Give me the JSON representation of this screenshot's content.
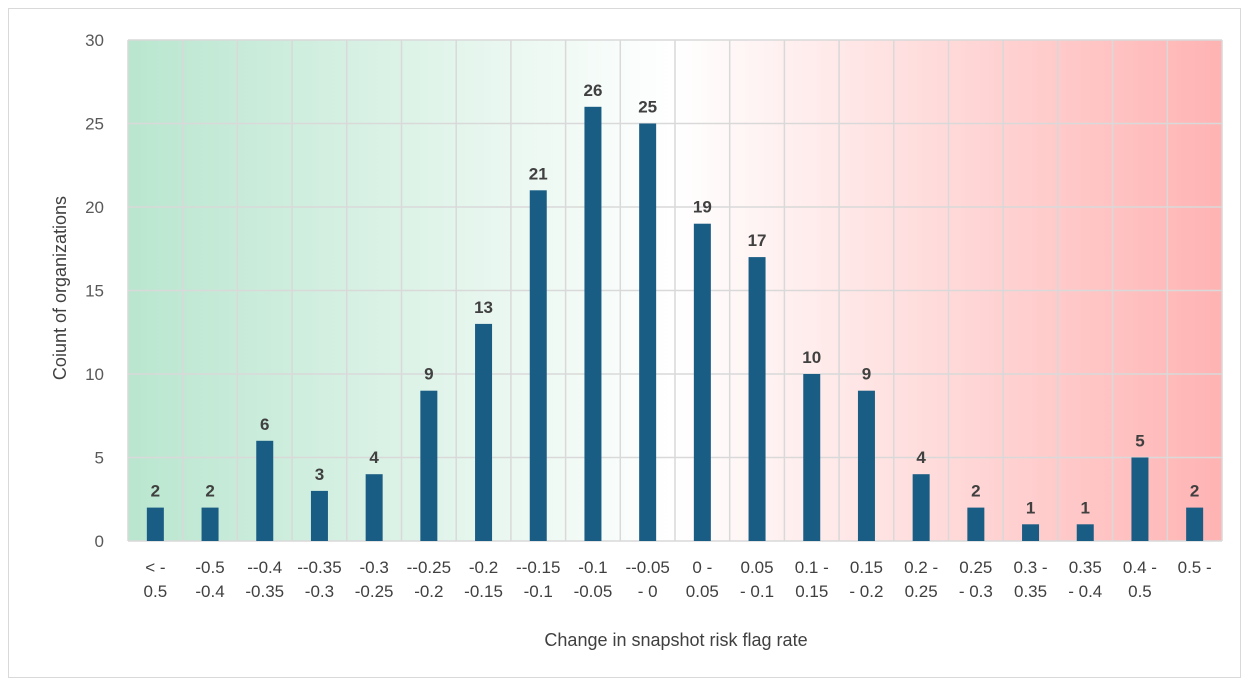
{
  "chart_data": {
    "type": "bar",
    "title": "",
    "xlabel": "Change in snapshot risk flag rate",
    "ylabel": "Coiunt of organizations",
    "ylim": [
      0,
      30
    ],
    "yticks": [
      0,
      5,
      10,
      15,
      20,
      25,
      30
    ],
    "grid": true,
    "legend": "none",
    "categories": [
      [
        "< -",
        "0.5"
      ],
      [
        "-0.5",
        "-0.4"
      ],
      [
        "--0.4",
        "-0.35"
      ],
      [
        "--0.35",
        "-0.3"
      ],
      [
        "-0.3",
        "-0.25"
      ],
      [
        "--0.25",
        "-0.2"
      ],
      [
        "-0.2",
        "-0.15"
      ],
      [
        "--0.15",
        "-0.1"
      ],
      [
        "-0.1",
        "-0.05"
      ],
      [
        "--0.05",
        "- 0"
      ],
      [
        "0 -",
        "0.05"
      ],
      [
        "0.05",
        "- 0.1"
      ],
      [
        "0.1 -",
        "0.15"
      ],
      [
        "0.15",
        "- 0.2"
      ],
      [
        "0.2 -",
        "0.25"
      ],
      [
        "0.25",
        "- 0.3"
      ],
      [
        "0.3 -",
        "0.35"
      ],
      [
        "0.35",
        "- 0.4"
      ],
      [
        "0.4 -",
        "0.5"
      ],
      [
        "0.5 -",
        ""
      ]
    ],
    "values": [
      2,
      2,
      6,
      3,
      4,
      9,
      13,
      21,
      26,
      25,
      19,
      17,
      10,
      9,
      4,
      2,
      1,
      1,
      5,
      2
    ],
    "colors": {
      "bar": "#1a5d84",
      "background_left": "#b9e6cf",
      "background_mid": "#ffffff",
      "background_right": "#ffb3b3",
      "grid": "#d9d9d9"
    }
  }
}
